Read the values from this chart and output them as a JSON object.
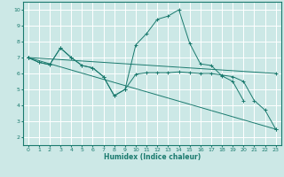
{
  "title": "",
  "xlabel": "Humidex (Indice chaleur)",
  "bg_color": "#cce8e6",
  "grid_color": "#ffffff",
  "line_color": "#1a7a6e",
  "xlim": [
    -0.5,
    23.5
  ],
  "ylim": [
    1.5,
    10.5
  ],
  "xticks": [
    0,
    1,
    2,
    3,
    4,
    5,
    6,
    7,
    8,
    9,
    10,
    11,
    12,
    13,
    14,
    15,
    16,
    17,
    18,
    19,
    20,
    21,
    22,
    23
  ],
  "yticks": [
    2,
    3,
    4,
    5,
    6,
    7,
    8,
    9,
    10
  ],
  "series": [
    {
      "x": [
        0,
        1,
        2,
        3,
        4,
        5,
        6,
        7,
        8,
        9,
        10,
        11,
        12,
        13,
        14,
        15,
        16,
        17,
        18,
        19,
        20,
        21,
        22,
        23
      ],
      "y": [
        7.0,
        6.7,
        6.55,
        7.6,
        7.0,
        6.5,
        6.35,
        5.8,
        4.6,
        5.0,
        5.95,
        6.05,
        6.05,
        6.05,
        6.1,
        6.05,
        6.0,
        6.0,
        5.9,
        5.8,
        5.5,
        4.3,
        3.7,
        2.5
      ]
    },
    {
      "x": [
        0,
        1,
        2,
        3,
        4,
        5,
        6,
        7,
        8,
        9,
        10,
        11,
        12,
        13,
        14,
        15,
        16,
        17,
        18,
        19,
        20
      ],
      "y": [
        7.0,
        6.7,
        6.55,
        7.6,
        7.0,
        6.5,
        6.35,
        5.8,
        4.6,
        5.0,
        7.8,
        8.5,
        9.4,
        9.6,
        10.0,
        7.9,
        6.6,
        6.5,
        5.85,
        5.5,
        4.3
      ]
    },
    {
      "x": [
        0,
        23
      ],
      "y": [
        7.0,
        6.0
      ]
    },
    {
      "x": [
        0,
        23
      ],
      "y": [
        7.0,
        2.5
      ]
    }
  ]
}
